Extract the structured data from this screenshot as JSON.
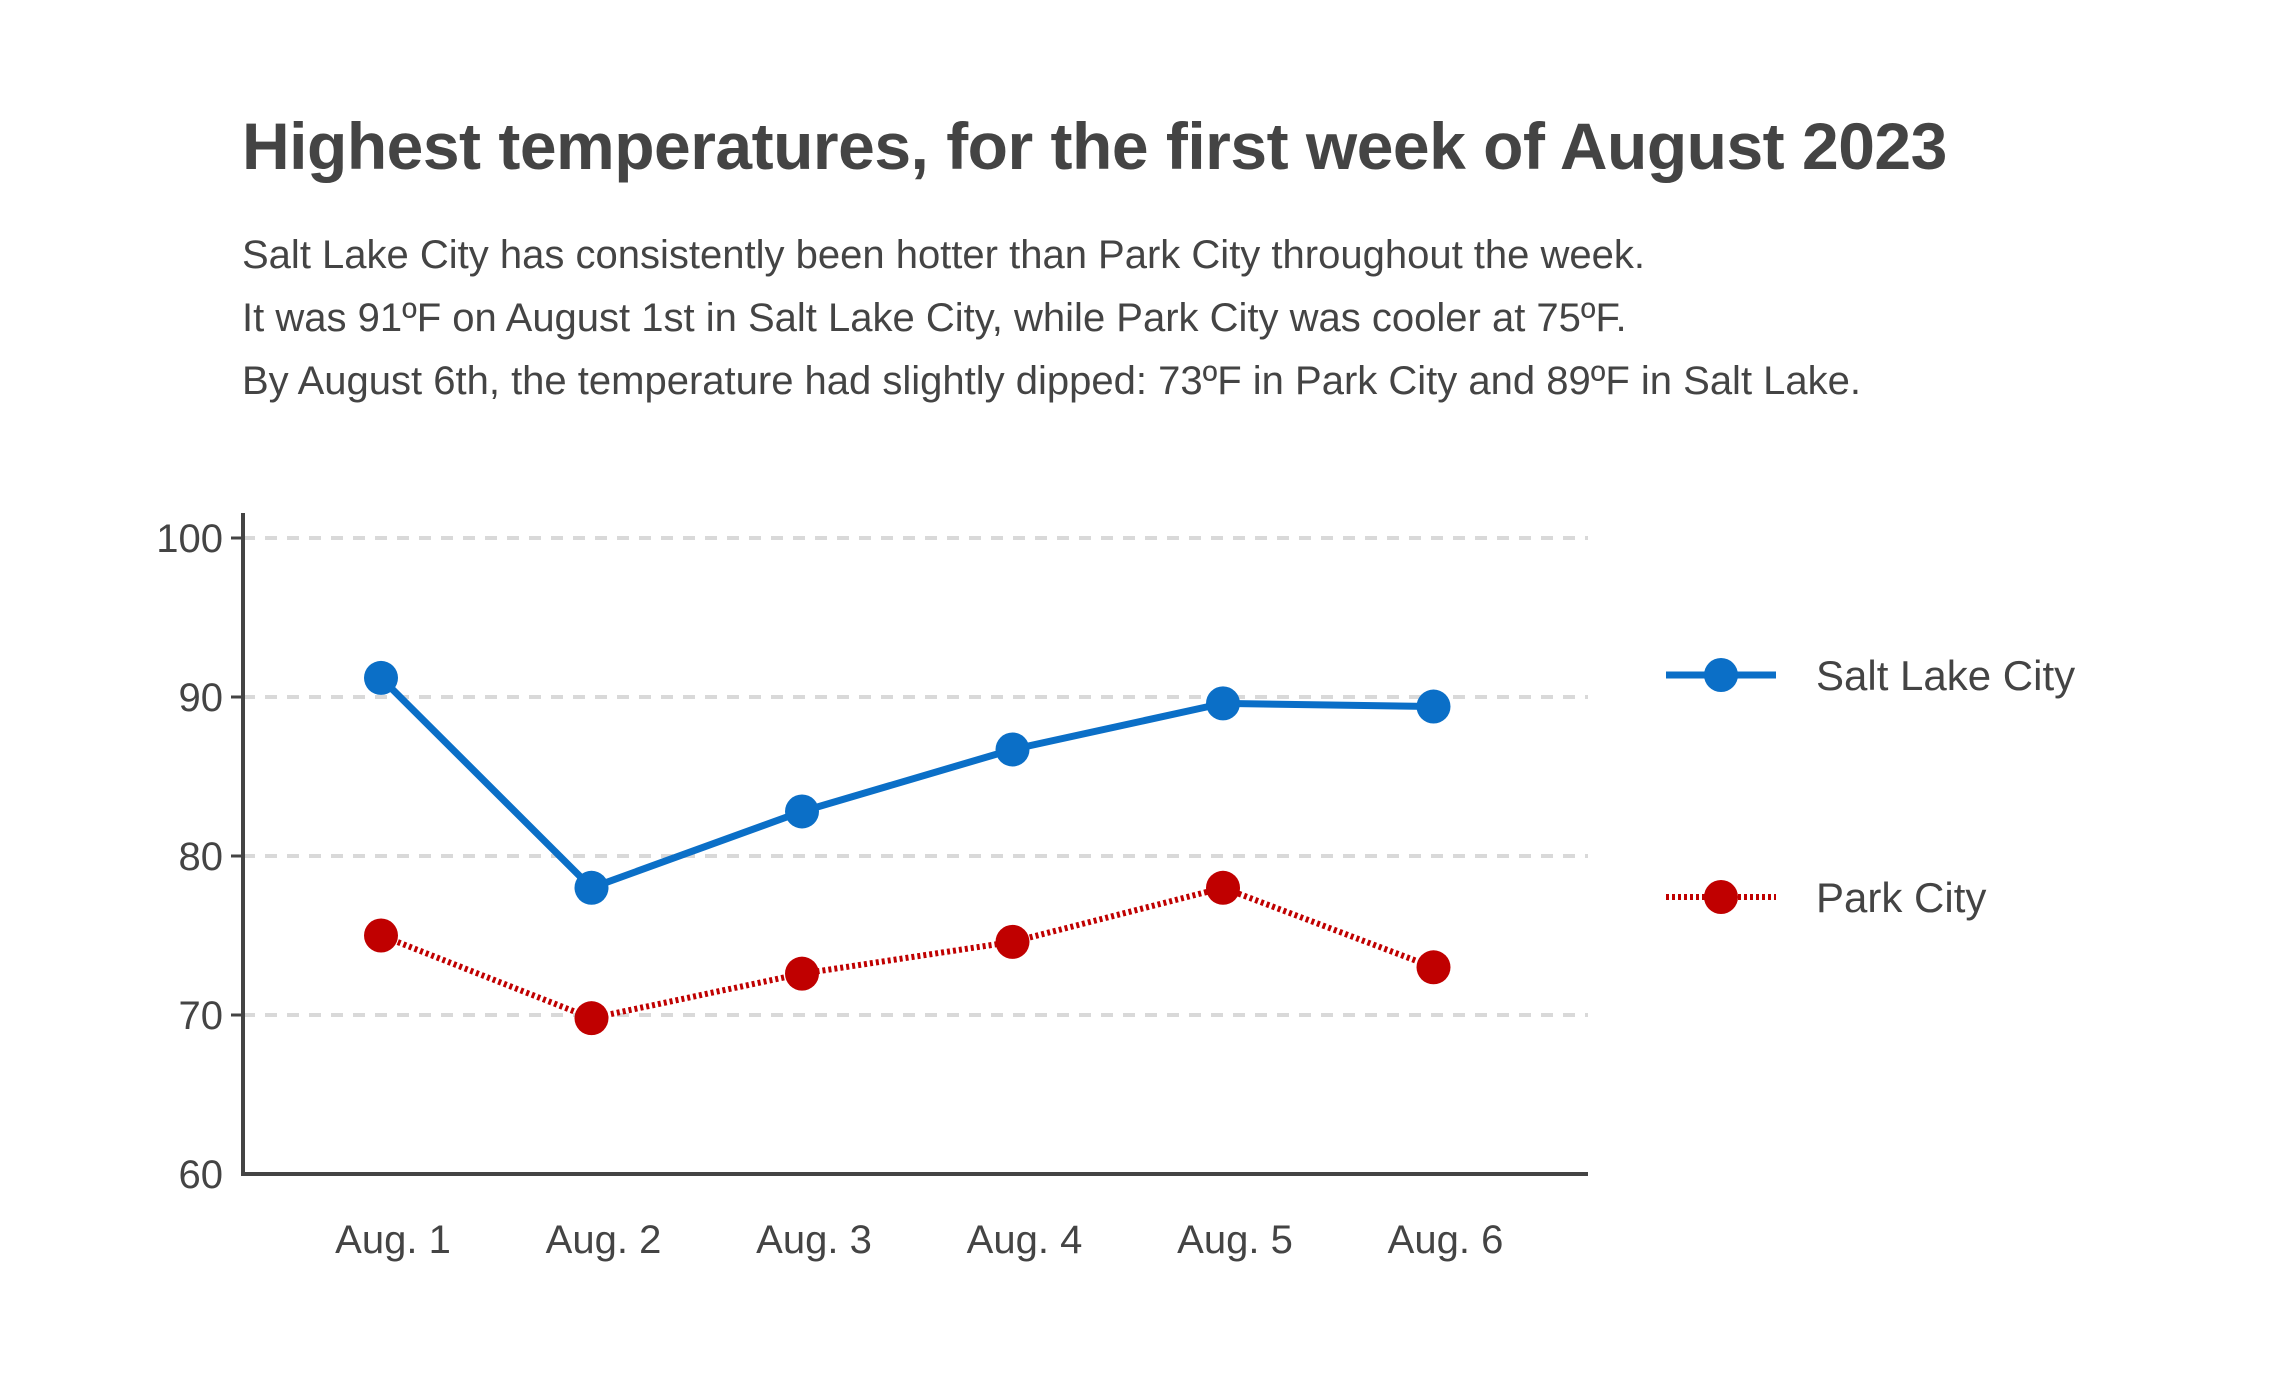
{
  "chart_data": {
    "type": "line",
    "title": "Highest temperatures, for the first week of August 2023",
    "subtitle_lines": [
      "Salt Lake City has consistently been hotter than Park City throughout the week.",
      "It was 91ºF on August 1st in Salt Lake City, while Park City was cooler at 75ºF.",
      "By August 6th, the temperature had slightly dipped: 73ºF in Park City and 89ºF in Salt Lake."
    ],
    "categories": [
      "Aug. 1",
      "Aug. 2",
      "Aug. 3",
      "Aug. 4",
      "Aug. 5",
      "Aug. 6"
    ],
    "series": [
      {
        "name": "Salt Lake City",
        "color": "#0b6fc7",
        "line_style": "solid",
        "values": [
          91.2,
          78,
          82.8,
          86.7,
          89.6,
          89.4
        ]
      },
      {
        "name": "Park City",
        "color": "#c00000",
        "line_style": "dotted",
        "values": [
          75,
          69.8,
          72.6,
          74.6,
          78,
          73
        ]
      }
    ],
    "ylim": [
      60,
      100
    ],
    "yticks": [
      60,
      70,
      80,
      90,
      100
    ],
    "ytick_labels": [
      "60",
      "70",
      "80",
      "90",
      "100"
    ],
    "grid": true,
    "xlabel": "",
    "ylabel": "",
    "legend_position": "right"
  }
}
